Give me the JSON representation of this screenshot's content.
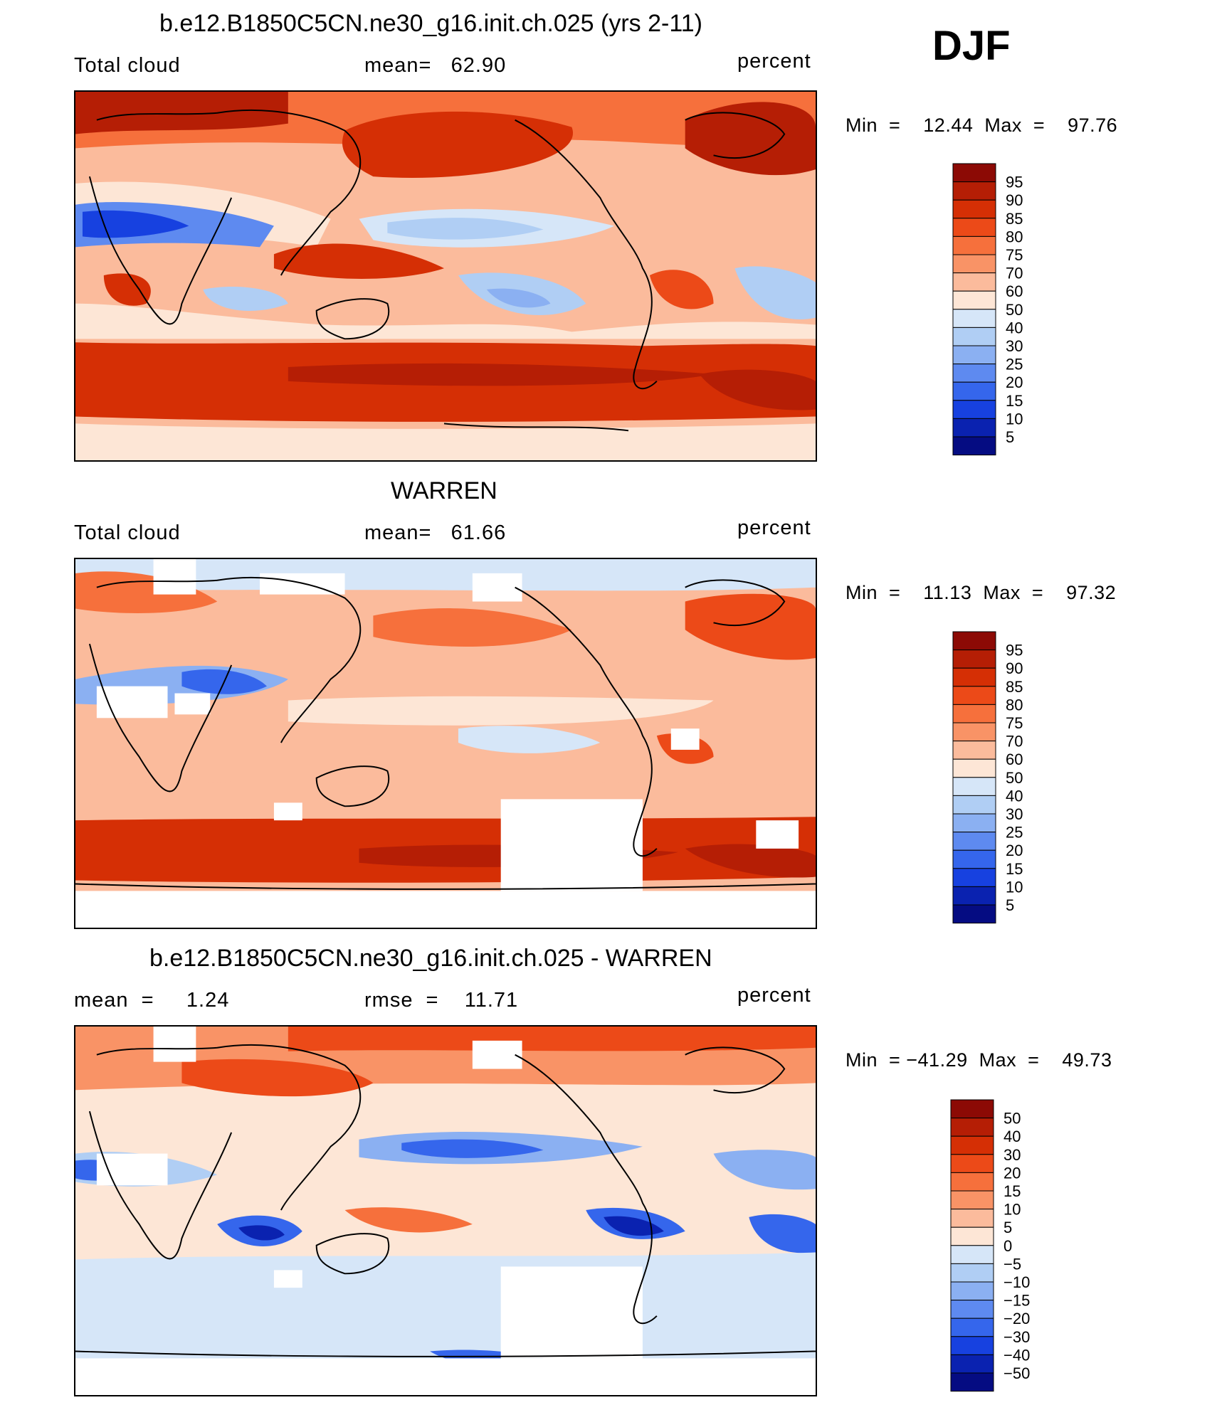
{
  "header": {
    "season": "DJF"
  },
  "panels": [
    {
      "id": "model",
      "title": "b.e12.B1850C5CN.ne30_g16.init.ch.025 (yrs 2-11)",
      "left_label": "Total cloud",
      "center_label": "mean=   62.90",
      "units": "percent",
      "minmax": "Min  =    12.44  Max  =    97.76"
    },
    {
      "id": "obs",
      "title": "WARREN",
      "left_label": "Total cloud",
      "center_label": "mean=   61.66",
      "units": "percent",
      "minmax": "Min  =    11.13  Max  =    97.32"
    },
    {
      "id": "diff",
      "title": "b.e12.B1850C5CN.ne30_g16.init.ch.025 - WARREN",
      "left_label": "mean  =     1.24",
      "center_label": "rmse  =    11.71",
      "units": "percent",
      "minmax": "Min  = −41.29  Max  =    49.73"
    }
  ],
  "colorbars": {
    "cloud": {
      "labels": [
        "95",
        "90",
        "85",
        "80",
        "75",
        "70",
        "60",
        "50",
        "40",
        "30",
        "25",
        "20",
        "15",
        "10",
        "5"
      ],
      "colors": [
        "#8c0a05",
        "#b51e05",
        "#d52f05",
        "#ec4a18",
        "#f6703c",
        "#f99366",
        "#fbbb9c",
        "#fde6d6",
        "#d6e6f8",
        "#b0cef4",
        "#8bb0f2",
        "#5e8af0",
        "#3566ec",
        "#1741e0",
        "#0a22b0",
        "#050c82"
      ]
    },
    "diff": {
      "labels": [
        "50",
        "40",
        "30",
        "20",
        "15",
        "10",
        "5",
        "0",
        "−5",
        "−10",
        "−15",
        "−20",
        "−30",
        "−40",
        "−50"
      ],
      "colors": [
        "#8c0a05",
        "#b51e05",
        "#d52f05",
        "#ec4a18",
        "#f6703c",
        "#f99366",
        "#fbbb9c",
        "#fde6d6",
        "#d6e6f8",
        "#b0cef4",
        "#8bb0f2",
        "#5e8af0",
        "#3566ec",
        "#1741e0",
        "#0a22b0",
        "#050c82"
      ]
    }
  }
}
